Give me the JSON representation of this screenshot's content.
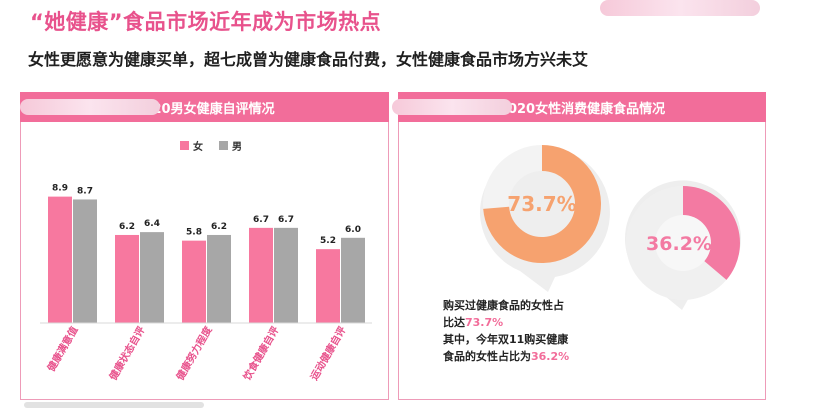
{
  "header": {
    "title": "“她健康”食品市场近年成为市场热点",
    "subtitle": "女性更愿意为健康买单，超七成曾为健康食品付费，女性健康食品市场方兴未艾"
  },
  "left_panel": {
    "title": "2020男女健康自评情况"
  },
  "right_panel": {
    "title": "2020女性消费健康食品情况"
  },
  "colors": {
    "female": "#f7789f",
    "male": "#a7a7a7",
    "accent": "#f26d9a",
    "donut_orange": "#f6a26f",
    "donut_pink": "#f37aa2"
  },
  "chart_data": [
    {
      "type": "bar",
      "title": "2020男女健康自评情况",
      "categories": [
        "健康满意值",
        "健康状态自评",
        "健康努力程度",
        "饮食健康自评",
        "运动健康自评"
      ],
      "series": [
        {
          "name": "女",
          "values": [
            8.9,
            6.2,
            5.8,
            6.7,
            5.2
          ],
          "labels": [
            "8.9",
            "6.2",
            "5.8",
            "6.7",
            "5.2"
          ]
        },
        {
          "name": "男",
          "values": [
            8.7,
            6.4,
            6.2,
            6.7,
            6.0
          ],
          "labels": [
            "8.7",
            "6.4",
            "6.2",
            "6.7",
            "6.0"
          ]
        }
      ],
      "legend_position": "top-center",
      "grid": false
    },
    {
      "type": "pie",
      "title": "2020女性消费健康食品情况",
      "slices": [
        {
          "value": 73.7,
          "label": "73.7%"
        },
        {
          "value": 36.2,
          "label": "36.2%"
        }
      ]
    }
  ],
  "note": {
    "line1": "购买过健康食品的女性占",
    "line2_prefix": "比达",
    "line2_value": "73.7%",
    "line3": "其中，今年双11购买健康",
    "line4_prefix": "食品的女性占比为",
    "line4_value": "36.2%"
  }
}
